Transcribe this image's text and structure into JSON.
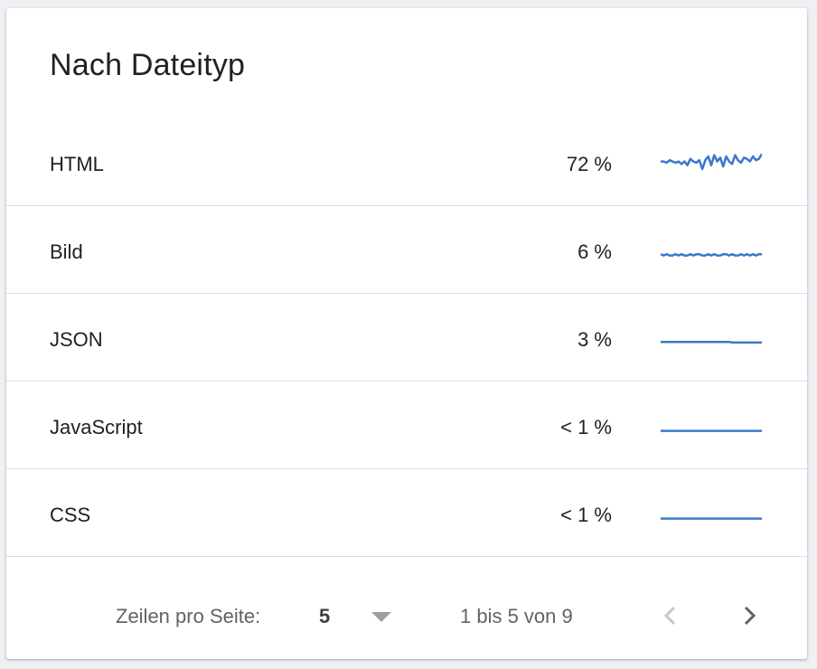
{
  "card": {
    "title": "Nach Dateityp"
  },
  "rows": [
    {
      "label": "HTML",
      "value": "72 %",
      "spark": [
        6,
        6,
        5,
        7,
        6,
        5,
        6,
        4,
        6,
        3,
        8,
        6,
        5,
        7,
        0,
        7,
        10,
        3,
        11,
        6,
        9,
        2,
        10,
        6,
        4,
        11,
        7,
        5,
        9,
        8,
        6,
        10,
        7,
        8,
        12
      ]
    },
    {
      "label": "Bild",
      "value": "6 %",
      "spark": [
        2,
        1,
        2,
        1,
        1,
        2,
        1,
        2,
        1,
        1,
        2,
        1,
        2,
        2,
        1,
        1,
        2,
        1,
        2,
        1,
        1,
        2,
        2,
        1,
        2,
        1,
        1,
        2,
        1,
        2,
        1,
        2,
        1,
        2,
        2
      ]
    },
    {
      "label": "JSON",
      "value": "3 %",
      "spark": [
        2,
        2,
        2,
        2,
        2,
        2,
        2,
        2,
        2,
        2,
        2,
        2,
        2,
        2,
        2,
        2,
        2,
        2,
        2,
        2,
        2,
        2,
        2,
        2,
        1.5,
        1.5,
        1.5,
        1.5,
        1.5,
        1.5,
        1.5,
        1.5,
        1.5,
        1.5,
        1.5
      ]
    },
    {
      "label": "JavaScript",
      "value": "< 1 %",
      "spark": [
        1,
        1,
        1,
        1,
        1,
        1,
        1,
        1,
        1,
        1,
        1,
        1,
        1,
        1,
        1,
        1,
        1,
        1,
        1,
        1,
        1,
        1,
        1,
        1,
        1,
        1,
        1,
        1,
        1,
        1,
        1,
        1,
        1,
        1,
        1
      ]
    },
    {
      "label": "CSS",
      "value": "< 1 %",
      "spark": [
        1,
        1,
        1,
        1,
        1,
        1,
        1,
        1,
        1,
        1,
        1,
        1,
        1,
        1,
        1,
        1,
        1,
        1,
        1,
        1,
        1,
        1,
        1,
        1,
        1,
        1,
        1,
        1,
        1,
        1,
        1,
        1,
        1,
        1,
        1
      ]
    }
  ],
  "sparkline_color": "#3b78c9",
  "footer": {
    "rows_per_page_label": "Zeilen pro Seite:",
    "rows_per_page_value": "5",
    "range_text": "1 bis 5 von 9",
    "prev_icon": "chevron-left-icon",
    "next_icon": "chevron-right-icon"
  }
}
